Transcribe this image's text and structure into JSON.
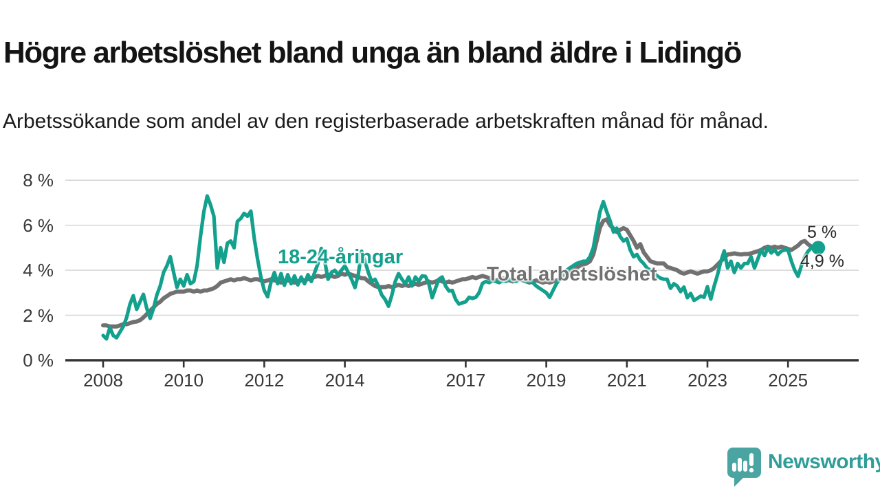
{
  "header": {
    "title": "Högre arbetslöshet bland unga än bland äldre i Lidingö",
    "subtitle": "Arbetssökande som andel av den registerbaserade arbetskraften månad för månad."
  },
  "chart": {
    "colors": {
      "young": "#13a08d",
      "total": "#717171",
      "axis": "#333333",
      "grid": "#d7d7d7",
      "tick_text": "#383838",
      "end_label_text": "#2b2b2b"
    },
    "series_labels": {
      "young": "18-24-åringar",
      "total": "Total arbetslöshet"
    },
    "end_labels": {
      "young": "5 %",
      "total": "4,9 %"
    }
  },
  "chart_data": {
    "type": "line",
    "title": "Högre arbetslöshet bland unga än bland äldre i Lidingö",
    "subtitle": "Arbetssökande som andel av den registerbaserade arbetskraften månad för månad.",
    "unit": "%",
    "x_interval": "monthly",
    "x_start_year": 2008,
    "x_end": "2025-10",
    "ylim": [
      0,
      8
    ],
    "grid": true,
    "y_ticks": [
      {
        "value": 0,
        "label": "0 %"
      },
      {
        "value": 2,
        "label": "2 %"
      },
      {
        "value": 4,
        "label": "4 %"
      },
      {
        "value": 6,
        "label": "6 %"
      },
      {
        "value": 8,
        "label": "8 %"
      }
    ],
    "x_ticks": [
      {
        "year": 2008,
        "label": "2008"
      },
      {
        "year": 2010,
        "label": "2010"
      },
      {
        "year": 2012,
        "label": "2012"
      },
      {
        "year": 2014,
        "label": "2014"
      },
      {
        "year": 2017,
        "label": "2017"
      },
      {
        "year": 2019,
        "label": "2019"
      },
      {
        "year": 2021,
        "label": "2021"
      },
      {
        "year": 2023,
        "label": "2023"
      },
      {
        "year": 2025,
        "label": "2025"
      }
    ],
    "series": [
      {
        "id": "young",
        "name": "18-24-åringar",
        "color": "#13a08d",
        "width": 5.2,
        "end_label": "5 %",
        "end_value": 5.0,
        "values": [
          1.1,
          0.95,
          1.45,
          1.1,
          1.0,
          1.25,
          1.5,
          1.9,
          2.5,
          2.87,
          2.26,
          2.6,
          2.93,
          2.3,
          1.86,
          2.3,
          2.9,
          3.3,
          3.9,
          4.2,
          4.6,
          3.9,
          3.24,
          3.6,
          3.3,
          3.8,
          3.4,
          3.5,
          4.2,
          5.5,
          6.6,
          7.3,
          6.9,
          6.4,
          4.1,
          5.0,
          4.35,
          5.2,
          5.3,
          5.0,
          6.17,
          6.3,
          6.53,
          6.4,
          6.63,
          5.42,
          4.5,
          3.7,
          3.1,
          2.82,
          3.48,
          3.9,
          3.4,
          3.85,
          3.33,
          3.8,
          3.4,
          3.75,
          3.35,
          3.7,
          3.4,
          3.8,
          3.5,
          3.9,
          4.3,
          4.97,
          4.4,
          3.6,
          3.9,
          4.0,
          3.8,
          4.0,
          4.2,
          3.9,
          3.6,
          3.23,
          3.8,
          4.85,
          4.4,
          3.9,
          3.5,
          3.6,
          3.3,
          2.9,
          2.7,
          2.4,
          2.9,
          3.5,
          3.85,
          3.6,
          3.4,
          3.7,
          3.3,
          3.7,
          3.5,
          3.75,
          3.73,
          3.4,
          2.78,
          3.2,
          3.6,
          3.7,
          3.3,
          3.08,
          3.1,
          2.7,
          2.5,
          2.55,
          2.6,
          2.8,
          2.75,
          2.8,
          3.0,
          3.42,
          3.5,
          3.45,
          3.55,
          3.5,
          3.45,
          3.55,
          3.5,
          3.6,
          3.55,
          3.5,
          3.6,
          3.55,
          3.5,
          3.55,
          3.45,
          3.3,
          3.2,
          3.1,
          3.0,
          2.8,
          3.1,
          3.4,
          3.6,
          3.8,
          4.0,
          4.1,
          4.2,
          4.3,
          4.35,
          4.4,
          4.4,
          4.6,
          5.0,
          5.83,
          6.6,
          7.05,
          6.6,
          6.2,
          5.7,
          5.87,
          5.5,
          5.3,
          5.4,
          4.9,
          4.6,
          4.7,
          4.45,
          4.3,
          4.1,
          4.0,
          3.9,
          3.75,
          3.65,
          3.6,
          3.6,
          3.2,
          3.4,
          3.3,
          3.05,
          3.25,
          2.78,
          2.97,
          2.66,
          2.75,
          2.85,
          2.8,
          3.27,
          2.72,
          3.3,
          3.8,
          4.4,
          4.86,
          4.1,
          4.4,
          3.9,
          4.3,
          4.1,
          4.3,
          4.3,
          4.6,
          4.1,
          4.5,
          4.9,
          4.65,
          5.0,
          4.77,
          4.9,
          4.7,
          4.85,
          4.9,
          4.9,
          4.4,
          4.0,
          3.73,
          4.2,
          4.6,
          4.85,
          5.0,
          5.05,
          5.0
        ]
      },
      {
        "id": "total",
        "name": "Total arbetslöshet",
        "color": "#717171",
        "width": 6,
        "end_label": "4,9 %",
        "end_value": 4.9,
        "values": [
          1.55,
          1.55,
          1.5,
          1.5,
          1.5,
          1.55,
          1.6,
          1.6,
          1.65,
          1.7,
          1.72,
          1.78,
          1.9,
          2.05,
          2.2,
          2.35,
          2.5,
          2.6,
          2.75,
          2.85,
          2.95,
          3.0,
          3.05,
          3.05,
          3.05,
          3.1,
          3.1,
          3.05,
          3.1,
          3.05,
          3.1,
          3.1,
          3.15,
          3.2,
          3.3,
          3.45,
          3.5,
          3.55,
          3.6,
          3.55,
          3.6,
          3.6,
          3.65,
          3.6,
          3.55,
          3.6,
          3.6,
          3.55,
          3.5,
          3.55,
          3.6,
          3.55,
          3.5,
          3.45,
          3.5,
          3.55,
          3.5,
          3.45,
          3.5,
          3.55,
          3.55,
          3.6,
          3.65,
          3.7,
          3.75,
          3.7,
          3.75,
          3.8,
          3.75,
          3.7,
          3.75,
          3.85,
          3.8,
          3.85,
          3.8,
          3.75,
          3.7,
          3.65,
          3.64,
          3.5,
          3.4,
          3.3,
          3.25,
          3.25,
          3.25,
          3.3,
          3.25,
          3.3,
          3.35,
          3.3,
          3.35,
          3.3,
          3.35,
          3.4,
          3.35,
          3.4,
          3.45,
          3.5,
          3.45,
          3.5,
          3.55,
          3.5,
          3.45,
          3.5,
          3.45,
          3.5,
          3.55,
          3.6,
          3.6,
          3.65,
          3.7,
          3.65,
          3.7,
          3.75,
          3.7,
          3.65,
          3.6,
          3.55,
          3.6,
          3.65,
          3.6,
          3.55,
          3.5,
          3.55,
          3.6,
          3.55,
          3.5,
          3.45,
          3.5,
          3.55,
          3.5,
          3.45,
          3.5,
          3.45,
          3.5,
          3.55,
          3.6,
          3.7,
          3.8,
          3.9,
          4.0,
          4.1,
          4.2,
          4.25,
          4.3,
          4.4,
          4.7,
          5.3,
          5.9,
          6.2,
          6.26,
          6.0,
          5.85,
          5.7,
          5.8,
          5.87,
          5.8,
          5.55,
          5.3,
          5.0,
          5.16,
          4.8,
          4.6,
          4.4,
          4.35,
          4.3,
          4.3,
          4.3,
          4.15,
          4.1,
          4.05,
          4.0,
          3.9,
          3.85,
          3.9,
          3.95,
          3.9,
          3.85,
          3.9,
          3.95,
          3.95,
          4.0,
          4.1,
          4.25,
          4.4,
          4.55,
          4.7,
          4.72,
          4.75,
          4.72,
          4.7,
          4.72,
          4.72,
          4.75,
          4.8,
          4.85,
          4.9,
          5.0,
          5.05,
          5.0,
          5.05,
          5.0,
          5.05,
          5.0,
          4.95,
          4.9,
          5.0,
          5.1,
          5.25,
          5.3,
          5.15,
          5.05,
          4.95,
          4.9
        ]
      }
    ],
    "legend_position": "inline-labels"
  },
  "footer": {
    "brand": "Newsworthy"
  }
}
